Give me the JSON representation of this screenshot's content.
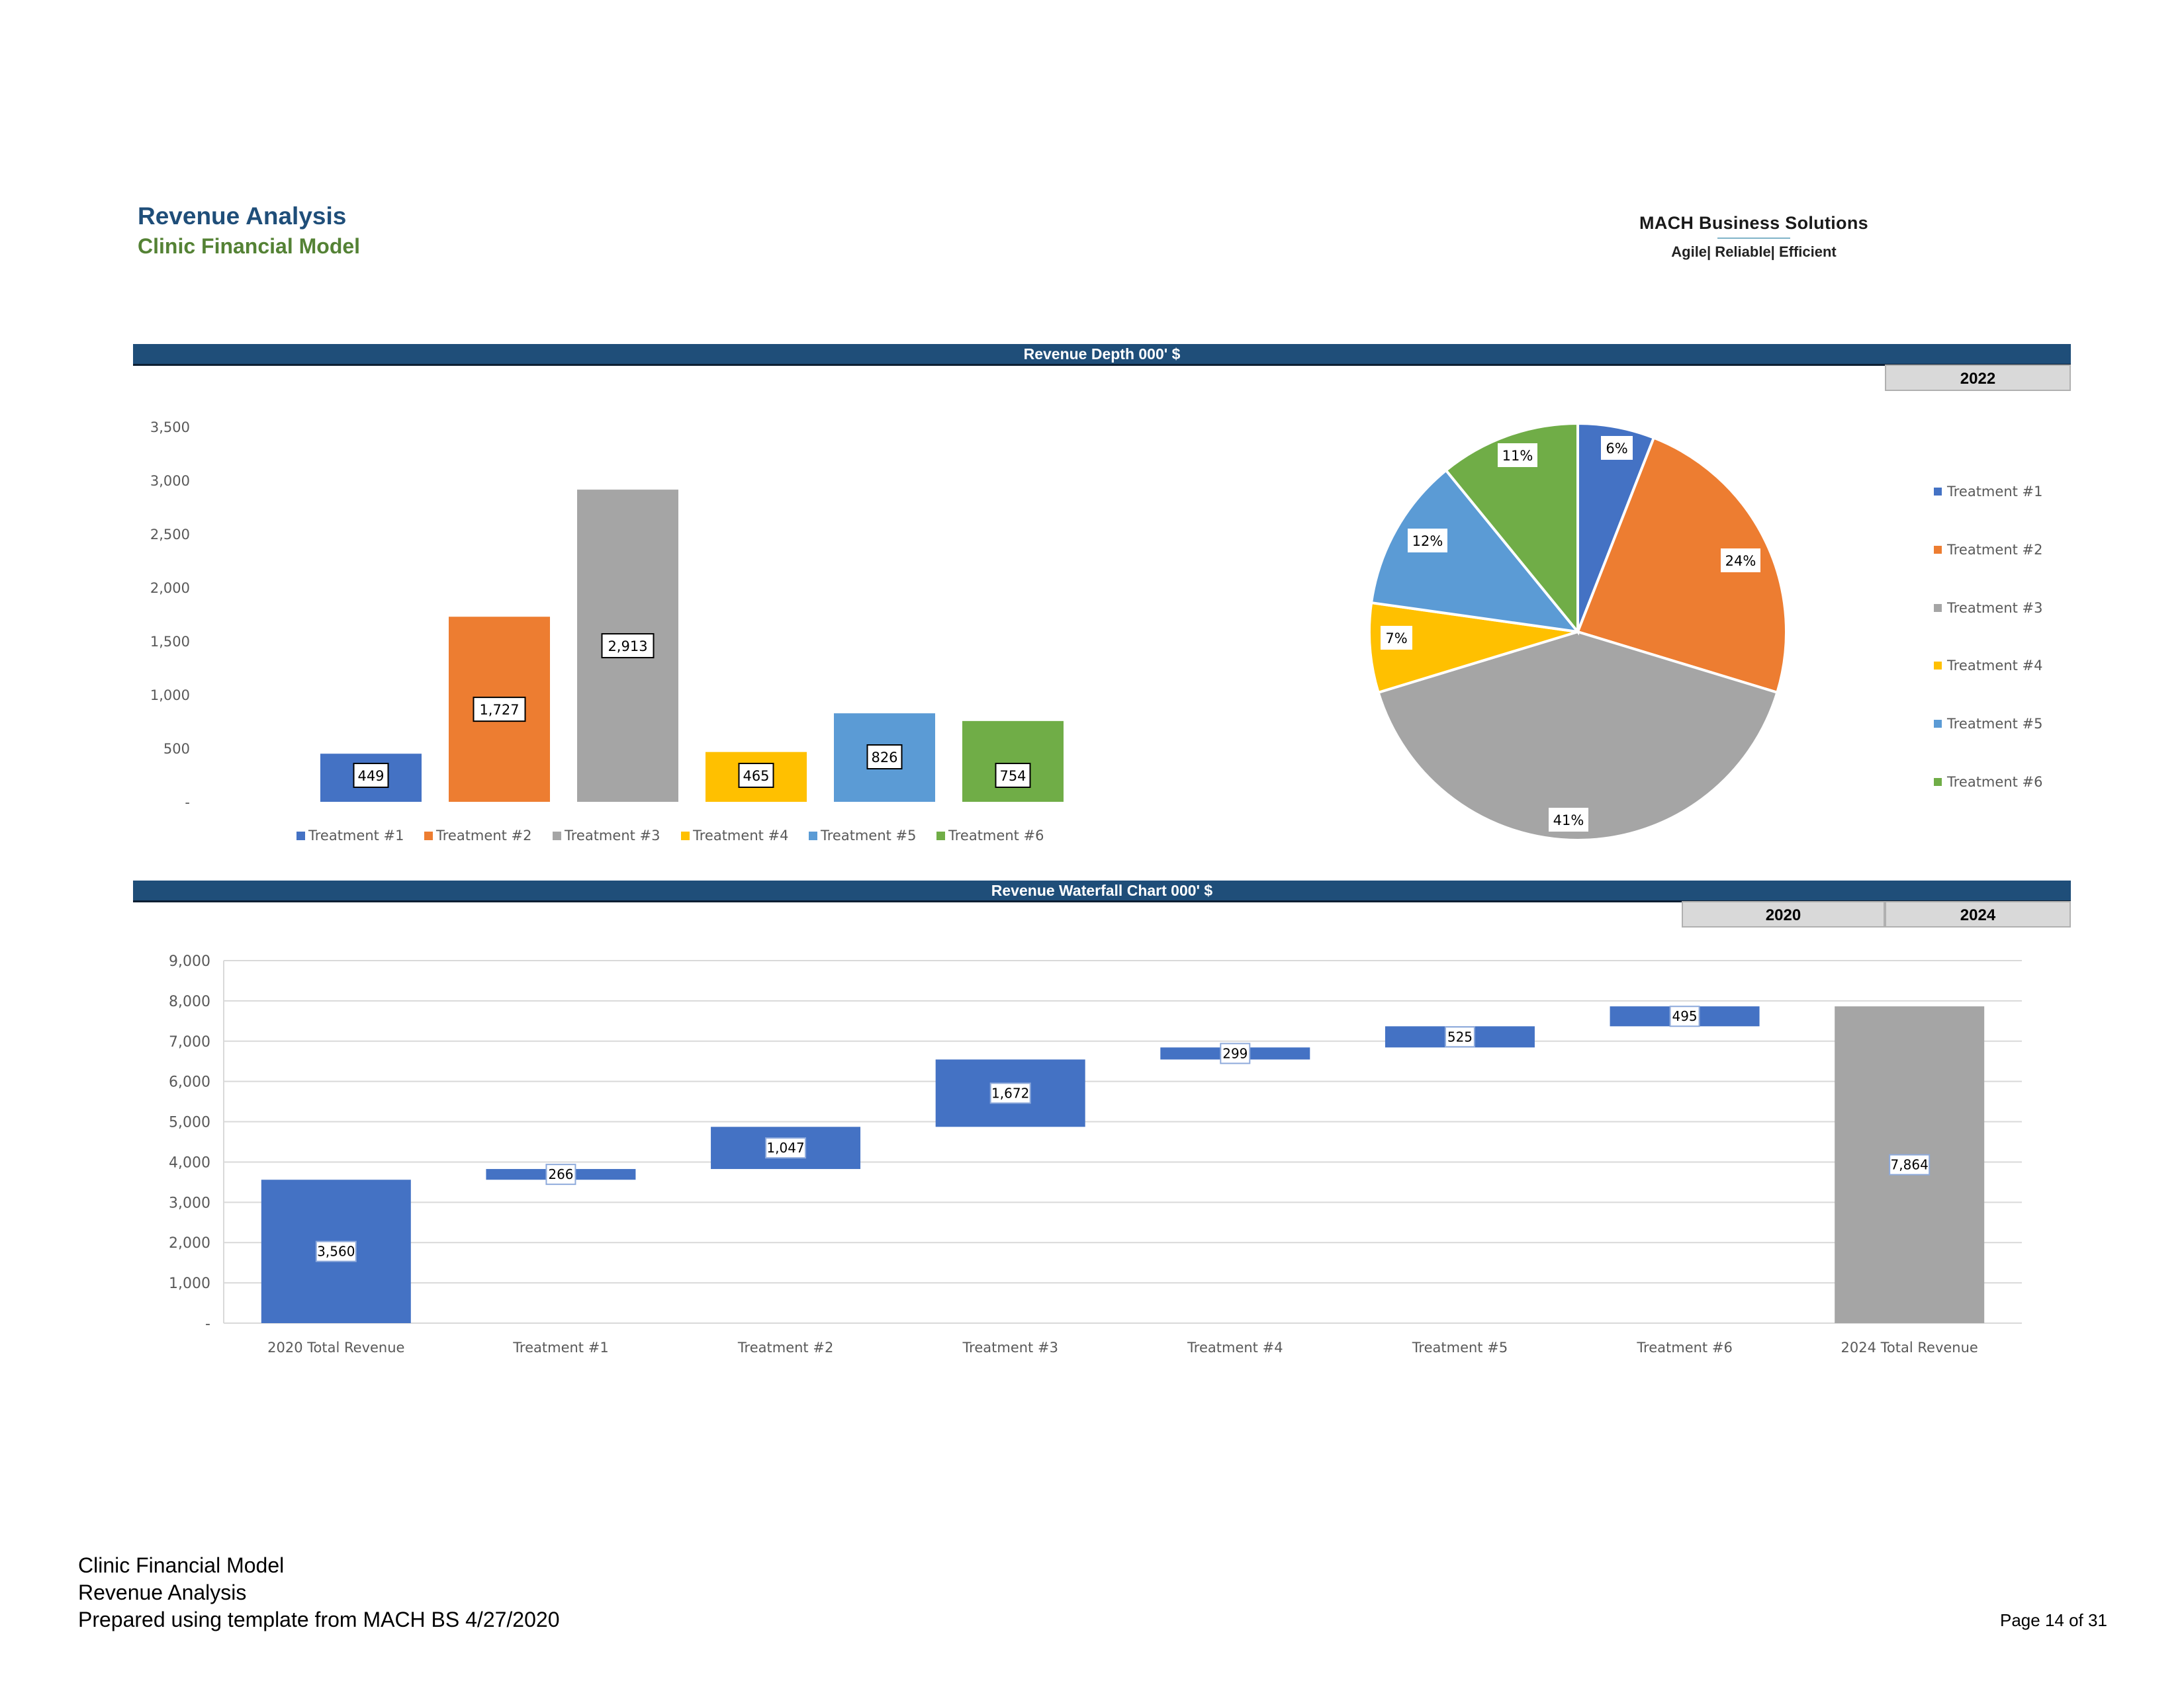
{
  "header": {
    "title": "Revenue Analysis",
    "subtitle": "Clinic Financial Model",
    "logo_name": "MACH Business Solutions",
    "logo_tagline": "Agile| Reliable| Efficient"
  },
  "section_depth": {
    "title": "Revenue Depth 000' $",
    "year": "2022"
  },
  "section_waterfall": {
    "title": "Revenue Waterfall Chart 000' $",
    "year_start": "2020",
    "year_end": "2024"
  },
  "footer": {
    "line1": "Clinic Financial Model",
    "line2": "Revenue Analysis",
    "line3": "Prepared using template from MACH BS 4/27/2020",
    "page": "Page 14 of 31"
  },
  "colors": {
    "t1": "#4472c4",
    "t2": "#ed7d31",
    "t3": "#a5a5a5",
    "t4": "#ffc000",
    "t5": "#5b9bd5",
    "t6": "#70ad47",
    "header_bar": "#1f4e79",
    "total": "#a5a5a5"
  },
  "chart_data": [
    {
      "type": "bar",
      "categories": [
        "Treatment #1",
        "Treatment #2",
        "Treatment #3",
        "Treatment #4",
        "Treatment #5",
        "Treatment #6"
      ],
      "values": [
        449,
        1727,
        2913,
        465,
        826,
        754
      ],
      "data_labels": [
        "449",
        "1,727",
        "2,913",
        "465",
        "826",
        "754"
      ],
      "yticks": [
        "-",
        "500",
        "1,000",
        "1,500",
        "2,000",
        "2,500",
        "3,000",
        "3,500"
      ],
      "ylim": [
        0,
        3500
      ],
      "grid": false,
      "legend": "bottom"
    },
    {
      "type": "pie",
      "labels": [
        "Treatment #1",
        "Treatment #2",
        "Treatment #3",
        "Treatment #4",
        "Treatment #5",
        "Treatment #6"
      ],
      "values": [
        6,
        24,
        41,
        7,
        12,
        11
      ],
      "data_labels": [
        "6%",
        "24%",
        "41%",
        "7%",
        "12%",
        "11%"
      ],
      "legend": "right"
    },
    {
      "type": "bar",
      "subtype": "waterfall",
      "categories": [
        "2020 Total Revenue",
        "Treatment #1",
        "Treatment #2",
        "Treatment #3",
        "Treatment #4",
        "Treatment #5",
        "Treatment #6",
        "2024 Total Revenue"
      ],
      "values": [
        3560,
        266,
        1047,
        1672,
        299,
        525,
        495,
        7864
      ],
      "data_labels": [
        "3,560",
        "266",
        "1,047",
        "1,672",
        "299",
        "525",
        "495",
        "7,864"
      ],
      "is_total": [
        true,
        false,
        false,
        false,
        false,
        false,
        false,
        true
      ],
      "yticks": [
        "-",
        "1,000",
        "2,000",
        "3,000",
        "4,000",
        "5,000",
        "6,000",
        "7,000",
        "8,000",
        "9,000"
      ],
      "ylim": [
        0,
        9000
      ],
      "grid": true
    }
  ]
}
